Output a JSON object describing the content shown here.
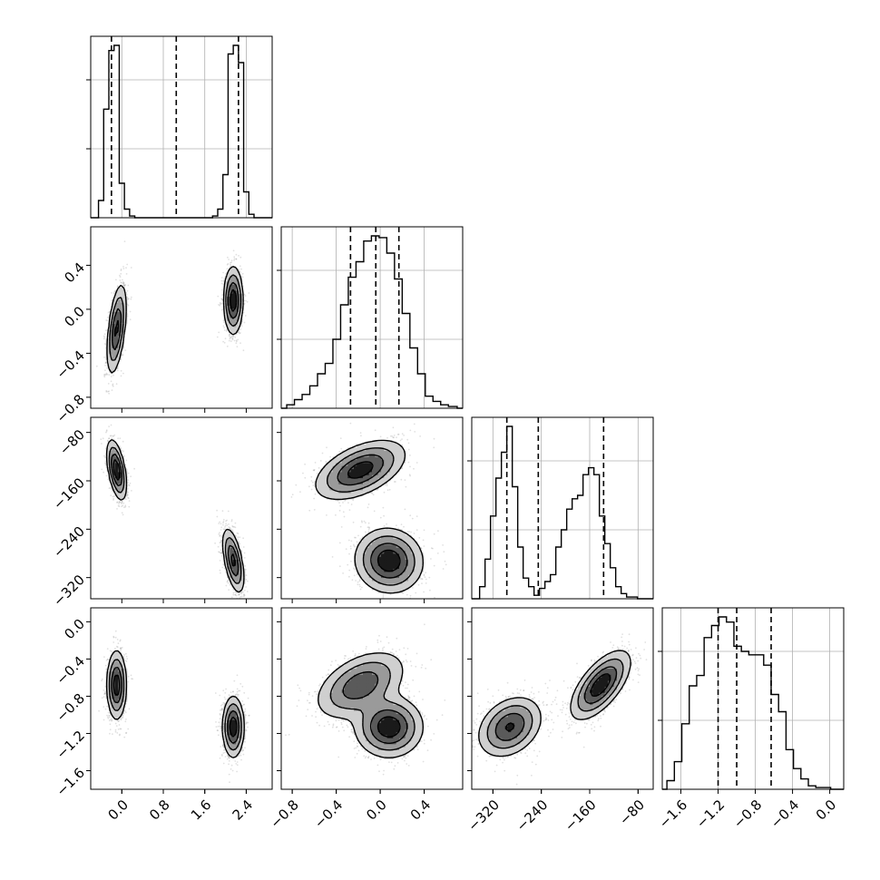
{
  "chart_data": {
    "type": "corner",
    "title": "",
    "layout": "lower-triangular",
    "grid": true,
    "colors": {
      "ink": "#000000",
      "background": "#ffffff",
      "grid": "#b0b0b0"
    },
    "parameters": [
      {
        "name": "",
        "range": [
          -0.6,
          2.9
        ],
        "ticks": [
          "0.0",
          "0.8",
          "1.6",
          "2.4"
        ]
      },
      {
        "name": "",
        "range": [
          -0.9,
          0.75
        ],
        "ticks": [
          "−0.8",
          "−0.4",
          "0.0",
          "0.4"
        ]
      },
      {
        "name": "",
        "range": [
          -355,
          -55
        ],
        "ticks": [
          "−320",
          "−240",
          "−160",
          "−80"
        ]
      },
      {
        "name": "",
        "range": [
          -1.8,
          0.15
        ],
        "ticks": [
          "−1.6",
          "−1.2",
          "−0.8",
          "−0.4",
          "0.0"
        ]
      }
    ],
    "histograms": [
      {
        "parameter": 0,
        "quantiles": [
          -0.2,
          1.05,
          2.25
        ],
        "bins": [
          [
            -0.55,
            -0.45,
            0.0
          ],
          [
            -0.45,
            -0.35,
            0.1
          ],
          [
            -0.35,
            -0.25,
            0.63
          ],
          [
            -0.25,
            -0.15,
            0.97
          ],
          [
            -0.15,
            -0.05,
            1.0
          ],
          [
            -0.05,
            0.05,
            0.2
          ],
          [
            0.05,
            0.15,
            0.05
          ],
          [
            0.15,
            0.25,
            0.01
          ],
          [
            1.75,
            1.85,
            0.01
          ],
          [
            1.85,
            1.95,
            0.05
          ],
          [
            1.95,
            2.05,
            0.25
          ],
          [
            2.05,
            2.15,
            0.95
          ],
          [
            2.15,
            2.25,
            1.0
          ],
          [
            2.25,
            2.35,
            0.9
          ],
          [
            2.35,
            2.45,
            0.15
          ],
          [
            2.45,
            2.55,
            0.02
          ],
          [
            2.55,
            2.65,
            0.0
          ]
        ]
      },
      {
        "parameter": 1,
        "quantiles": [
          -0.27,
          -0.04,
          0.17
        ],
        "bins": [
          [
            -0.85,
            -0.78,
            0.02
          ],
          [
            -0.78,
            -0.71,
            0.05
          ],
          [
            -0.71,
            -0.64,
            0.08
          ],
          [
            -0.64,
            -0.57,
            0.13
          ],
          [
            -0.57,
            -0.5,
            0.2
          ],
          [
            -0.5,
            -0.43,
            0.26
          ],
          [
            -0.43,
            -0.36,
            0.4
          ],
          [
            -0.36,
            -0.29,
            0.6
          ],
          [
            -0.29,
            -0.22,
            0.76
          ],
          [
            -0.22,
            -0.15,
            0.85
          ],
          [
            -0.15,
            -0.08,
            0.97
          ],
          [
            -0.08,
            -0.01,
            1.0
          ],
          [
            -0.01,
            0.06,
            0.99
          ],
          [
            0.06,
            0.13,
            0.9
          ],
          [
            0.13,
            0.2,
            0.75
          ],
          [
            0.2,
            0.27,
            0.55
          ],
          [
            0.27,
            0.34,
            0.35
          ],
          [
            0.34,
            0.41,
            0.2
          ],
          [
            0.41,
            0.48,
            0.07
          ],
          [
            0.48,
            0.55,
            0.04
          ],
          [
            0.55,
            0.62,
            0.02
          ],
          [
            0.62,
            0.7,
            0.01
          ]
        ]
      },
      {
        "parameter": 2,
        "quantiles": [
          -297,
          -245,
          -137
        ],
        "bins": [
          [
            -342,
            -333,
            0.07
          ],
          [
            -333,
            -324,
            0.23
          ],
          [
            -324,
            -315,
            0.48
          ],
          [
            -315,
            -306,
            0.7
          ],
          [
            -306,
            -297,
            0.85
          ],
          [
            -297,
            -288,
            1.0
          ],
          [
            -288,
            -279,
            0.65
          ],
          [
            -279,
            -270,
            0.3
          ],
          [
            -270,
            -261,
            0.12
          ],
          [
            -261,
            -252,
            0.07
          ],
          [
            -252,
            -243,
            0.02
          ],
          [
            -243,
            -234,
            0.06
          ],
          [
            -234,
            -225,
            0.1
          ],
          [
            -225,
            -216,
            0.14
          ],
          [
            -216,
            -207,
            0.3
          ],
          [
            -207,
            -198,
            0.4
          ],
          [
            -198,
            -189,
            0.52
          ],
          [
            -189,
            -180,
            0.58
          ],
          [
            -180,
            -171,
            0.6
          ],
          [
            -171,
            -162,
            0.72
          ],
          [
            -162,
            -153,
            0.76
          ],
          [
            -153,
            -144,
            0.72
          ],
          [
            -144,
            -135,
            0.48
          ],
          [
            -135,
            -126,
            0.32
          ],
          [
            -126,
            -117,
            0.18
          ],
          [
            -117,
            -108,
            0.07
          ],
          [
            -108,
            -99,
            0.03
          ],
          [
            -99,
            -90,
            0.01
          ],
          [
            -90,
            -81,
            0.01
          ]
        ]
      },
      {
        "parameter": 3,
        "quantiles": [
          -1.2,
          -1.0,
          -0.63
        ],
        "bins": [
          [
            -1.75,
            -1.67,
            0.05
          ],
          [
            -1.67,
            -1.59,
            0.16
          ],
          [
            -1.59,
            -1.51,
            0.38
          ],
          [
            -1.51,
            -1.43,
            0.6
          ],
          [
            -1.43,
            -1.35,
            0.66
          ],
          [
            -1.35,
            -1.27,
            0.88
          ],
          [
            -1.27,
            -1.19,
            0.95
          ],
          [
            -1.19,
            -1.11,
            1.0
          ],
          [
            -1.11,
            -1.03,
            0.97
          ],
          [
            -1.03,
            -0.95,
            0.83
          ],
          [
            -0.95,
            -0.87,
            0.8
          ],
          [
            -0.87,
            -0.79,
            0.78
          ],
          [
            -0.79,
            -0.71,
            0.78
          ],
          [
            -0.71,
            -0.63,
            0.72
          ],
          [
            -0.63,
            -0.55,
            0.55
          ],
          [
            -0.55,
            -0.47,
            0.45
          ],
          [
            -0.47,
            -0.39,
            0.23
          ],
          [
            -0.39,
            -0.31,
            0.12
          ],
          [
            -0.31,
            -0.23,
            0.06
          ],
          [
            -0.23,
            -0.15,
            0.02
          ],
          [
            -0.15,
            -0.07,
            0.01
          ],
          [
            -0.07,
            0.01,
            0.01
          ]
        ]
      }
    ],
    "joint_distributions": [
      {
        "x": 0,
        "y": 1,
        "components": [
          {
            "mean": [
              -0.1,
              -0.18
            ],
            "sd": [
              0.09,
              0.2
            ],
            "rho": 0.5,
            "weight": 0.5
          },
          {
            "mean": [
              2.15,
              0.08
            ],
            "sd": [
              0.09,
              0.15
            ],
            "rho": 0.0,
            "weight": 0.5
          }
        ]
      },
      {
        "x": 0,
        "y": 2,
        "components": [
          {
            "mean": [
              -0.1,
              -142
            ],
            "sd": [
              0.09,
              24
            ],
            "rho": -0.5,
            "weight": 0.5
          },
          {
            "mean": [
              2.15,
              -292
            ],
            "sd": [
              0.1,
              26
            ],
            "rho": -0.55,
            "weight": 0.5
          }
        ]
      },
      {
        "x": 0,
        "y": 3,
        "components": [
          {
            "mean": [
              -0.1,
              -0.68
            ],
            "sd": [
              0.09,
              0.18
            ],
            "rho": 0.0,
            "weight": 0.5
          },
          {
            "mean": [
              2.15,
              -1.13
            ],
            "sd": [
              0.1,
              0.16
            ],
            "rho": 0.0,
            "weight": 0.5
          }
        ]
      },
      {
        "x": 1,
        "y": 2,
        "components": [
          {
            "mean": [
              -0.18,
              -142
            ],
            "sd": [
              0.2,
              24
            ],
            "rho": 0.5,
            "weight": 0.5
          },
          {
            "mean": [
              0.08,
              -292
            ],
            "sd": [
              0.15,
              26
            ],
            "rho": -0.05,
            "weight": 0.5
          }
        ]
      },
      {
        "x": 1,
        "y": 3,
        "components": [
          {
            "mean": [
              -0.18,
              -0.68
            ],
            "sd": [
              0.2,
              0.18
            ],
            "rho": 0.45,
            "weight": 0.5
          },
          {
            "mean": [
              0.08,
              -1.13
            ],
            "sd": [
              0.15,
              0.16
            ],
            "rho": 0.0,
            "weight": 0.5
          }
        ]
      },
      {
        "x": 2,
        "y": 3,
        "components": [
          {
            "mean": [
              -142,
              -0.68
            ],
            "sd": [
              24,
              0.18
            ],
            "rho": 0.65,
            "weight": 0.5
          },
          {
            "mean": [
              -292,
              -1.13
            ],
            "sd": [
              26,
              0.16
            ],
            "rho": 0.3,
            "weight": 0.5
          }
        ]
      }
    ]
  }
}
